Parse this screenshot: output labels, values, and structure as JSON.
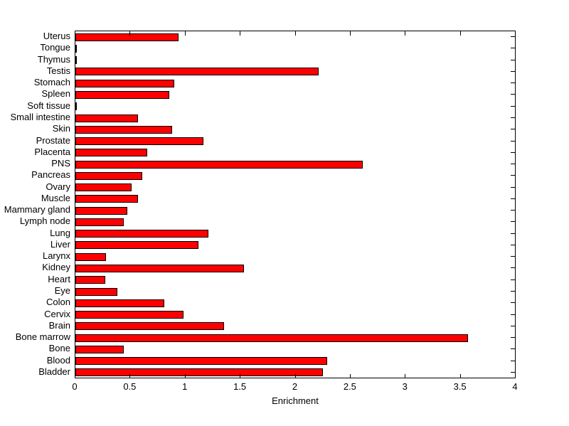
{
  "chart_data": {
    "type": "bar",
    "orientation": "horizontal",
    "title": "",
    "xlabel": "Enrichment",
    "ylabel": "",
    "xlim": [
      0,
      4
    ],
    "grid": false,
    "legend": null,
    "bar_color": "#FF0000",
    "bar_edge_color": "#000000",
    "axis_color": "#000000",
    "background_color": "#FFFFFF",
    "x_ticks": [
      0,
      0.5,
      1,
      1.5,
      2,
      2.5,
      3,
      3.5,
      4
    ],
    "x_tick_labels": [
      "0",
      "0.5",
      "1",
      "1.5",
      "2",
      "2.5",
      "3",
      "3.5",
      "4"
    ],
    "categories_top_to_bottom": [
      "Uterus",
      "Tongue",
      "Thymus",
      "Testis",
      "Stomach",
      "Spleen",
      "Soft tissue",
      "Small intestine",
      "Skin",
      "Prostate",
      "Placenta",
      "PNS",
      "Pancreas",
      "Ovary",
      "Muscle",
      "Mammary gland",
      "Lymph node",
      "Lung",
      "Liver",
      "Larynx",
      "Kidney",
      "Heart",
      "Eye",
      "Colon",
      "Cervix",
      "Brain",
      "Bone marrow",
      "Bone",
      "Blood",
      "Bladder"
    ],
    "values": [
      0.94,
      0.01,
      0.01,
      2.21,
      0.9,
      0.85,
      0.01,
      0.57,
      0.88,
      1.16,
      0.65,
      2.61,
      0.61,
      0.51,
      0.57,
      0.47,
      0.44,
      1.21,
      1.12,
      0.28,
      1.53,
      0.27,
      0.38,
      0.81,
      0.98,
      1.35,
      3.57,
      0.44,
      2.29,
      2.25
    ]
  }
}
